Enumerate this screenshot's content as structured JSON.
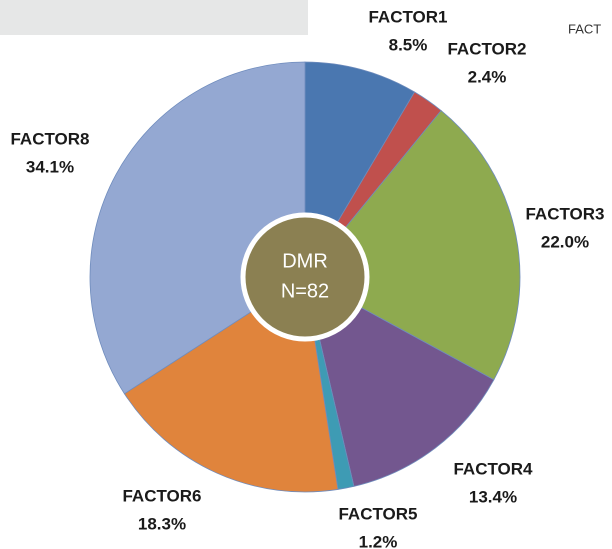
{
  "chart_data": {
    "type": "pie",
    "categories": [
      "FACTOR1",
      "FACTOR2",
      "FACTOR3",
      "FACTOR4",
      "FACTOR5",
      "FACTOR6",
      "FACTOR8"
    ],
    "values": [
      8.5,
      2.4,
      22.0,
      13.4,
      1.2,
      18.3,
      34.1
    ],
    "value_labels": [
      "8.5%",
      "2.4%",
      "22.0%",
      "13.4%",
      "1.2%",
      "18.3%",
      "34.1%"
    ],
    "colors": [
      "#4a77b0",
      "#c0504d",
      "#8eaa4f",
      "#73578f",
      "#3e9bb4",
      "#e0843c",
      "#94a8d2"
    ],
    "center_text": [
      "DMR",
      "N=82"
    ],
    "annotations": [
      "FACT"
    ]
  }
}
